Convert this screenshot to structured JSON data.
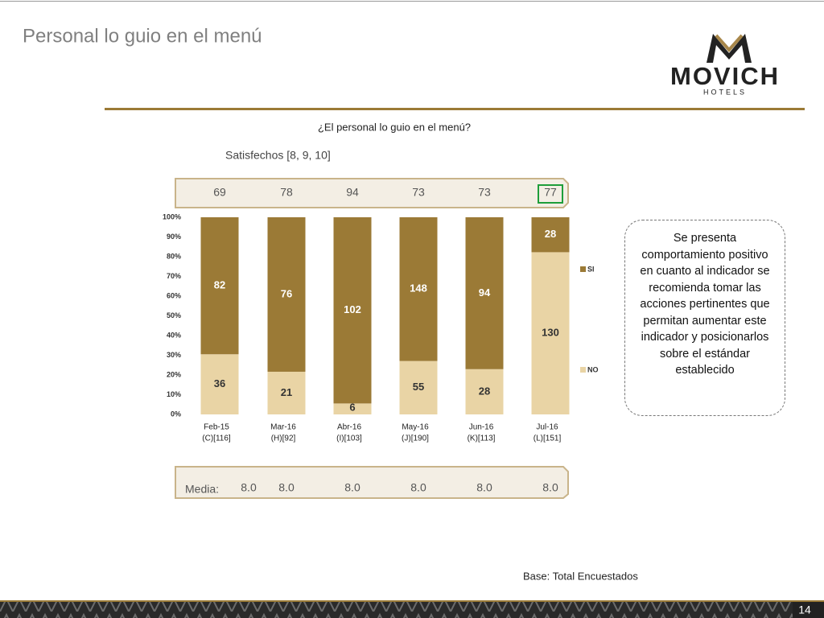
{
  "header": {
    "title": "Personal lo guio en el menú",
    "logo": "MOVICH",
    "logo_sub": "HOTELS"
  },
  "chart_data": {
    "type": "bar",
    "stacked": "percent",
    "title": "¿El personal lo guio en el menú?",
    "categories": [
      "Feb-15",
      "Mar-16",
      "Abr-16",
      "May-16",
      "Jun-16",
      "Jul-16"
    ],
    "bases": [
      "(C)[116]",
      "(H)[92]",
      "(I)[103]",
      "(J)[190]",
      "(K)[113]",
      "(L)[151]"
    ],
    "series": [
      {
        "name": "NO",
        "color": "#e9d4a5",
        "values": [
          36,
          21,
          6,
          55,
          28,
          130
        ]
      },
      {
        "name": "SI",
        "color": "#9b7a36",
        "values": [
          82,
          76,
          102,
          148,
          94,
          28
        ]
      }
    ],
    "ylim": [
      0,
      100
    ],
    "yticks": [
      {
        "value": 0,
        "label": "0%"
      },
      {
        "value": 10,
        "label": "10%"
      },
      {
        "value": 20,
        "label": "20%"
      },
      {
        "value": 30,
        "label": "30%"
      },
      {
        "value": 40,
        "label": "40%"
      },
      {
        "value": 50,
        "label": "50%"
      },
      {
        "value": 60,
        "label": "60%"
      },
      {
        "value": 70,
        "label": "70%"
      },
      {
        "value": 80,
        "label": "80%"
      },
      {
        "value": 90,
        "label": "90%"
      },
      {
        "value": 100,
        "label": "100%"
      }
    ],
    "satisfied_label": "Satisfechos [8, 9, 10]",
    "satisfied": [
      69,
      78,
      94,
      73,
      73,
      77
    ],
    "media_label": "Media:",
    "media": [
      "8.0",
      "8.0",
      "8.0",
      "8.0",
      "8.0",
      "8.0"
    ]
  },
  "note": "Se presenta comportamiento positivo en cuanto al indicador se recomienda tomar las acciones pertinentes que permitan aumentar este indicador y posicionarlos sobre el estándar establecido",
  "footer": {
    "base": "Base: Total Encuestados",
    "page": "14"
  }
}
